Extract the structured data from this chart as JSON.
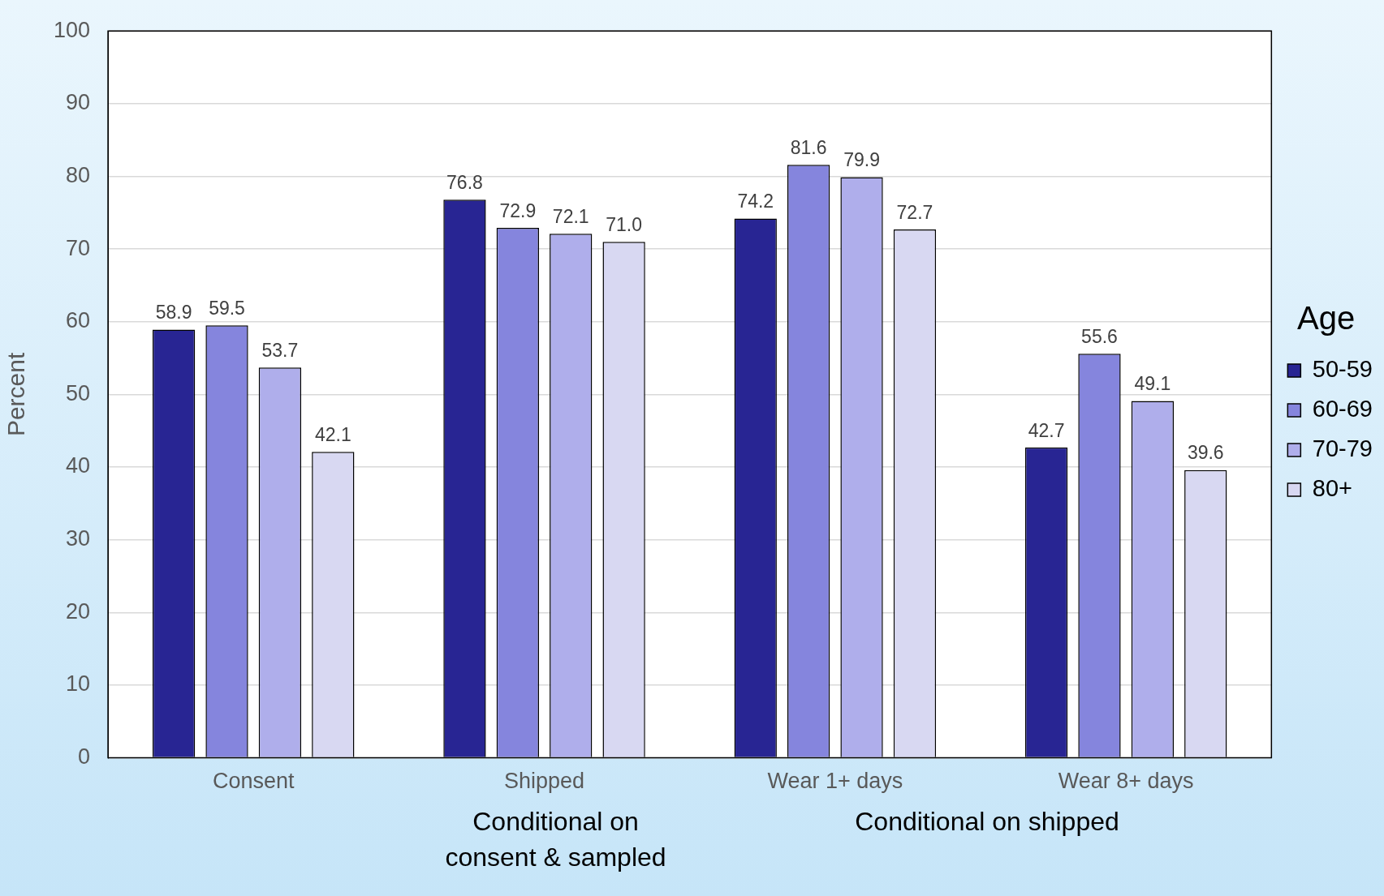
{
  "chart_data": {
    "type": "bar",
    "categories": [
      "Consent",
      "Shipped",
      "Wear 1+ days",
      "Wear 8+ days"
    ],
    "ylabel": "Percent",
    "legend_title": "Age",
    "series": [
      {
        "name": "50-59",
        "color": "#282593",
        "values": [
          58.9,
          76.8,
          74.2,
          42.7
        ],
        "value_labels": [
          "58.9",
          "76.8",
          "74.2",
          "42.7"
        ]
      },
      {
        "name": "60-69",
        "color": "#8585dd",
        "values": [
          59.5,
          72.9,
          81.6,
          55.6
        ],
        "value_labels": [
          "59.5",
          "72.9",
          "81.6",
          "55.6"
        ]
      },
      {
        "name": "70-79",
        "color": "#afaeeb",
        "values": [
          53.7,
          72.1,
          79.9,
          49.1
        ],
        "value_labels": [
          "53.7",
          "72.1",
          "79.9",
          "49.1"
        ]
      },
      {
        "name": "80+",
        "color": "#d8d8f2",
        "values": [
          42.1,
          71.0,
          72.7,
          39.6
        ],
        "value_labels": [
          "42.1",
          "71.0",
          "72.7",
          "39.6"
        ]
      }
    ],
    "ylim": [
      0,
      100
    ],
    "yticks": [
      0,
      10,
      20,
      30,
      40,
      50,
      60,
      70,
      80,
      90,
      100
    ],
    "grid": "y",
    "legend": "right",
    "annotations": [
      "Conditional on consent & sampled",
      "Conditional on shipped"
    ]
  }
}
